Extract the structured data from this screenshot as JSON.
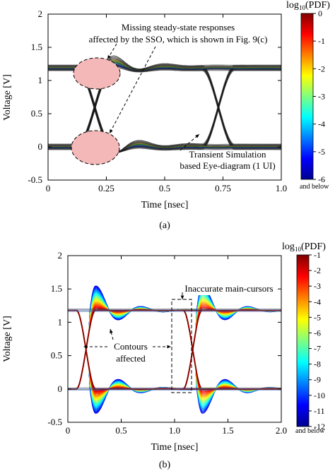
{
  "chart_data": [
    {
      "panel": "(a)",
      "type": "eye-diagram",
      "xlabel": "Time [nsec]",
      "ylabel": "Voltage [V]",
      "xlim": [
        0,
        1.0
      ],
      "ylim": [
        -0.5,
        2
      ],
      "x_ticks": [
        0,
        0.25,
        0.5,
        0.75,
        1.0
      ],
      "x_tick_labels": [
        "0",
        "0.25",
        "0.5",
        "0.75",
        "1.0"
      ],
      "y_ticks": [
        -0.5,
        0,
        0.5,
        1,
        1.5,
        2
      ],
      "y_tick_labels": [
        "-0.5",
        "0",
        "0.5",
        "1",
        "1.5",
        "2"
      ],
      "levels": {
        "high": 1.19,
        "low": 0.0
      },
      "eye_crossings": [
        0.2,
        0.73
      ],
      "colorbar": {
        "title_prefix": "log",
        "title_sub": "10",
        "title_suffix": "(PDF)",
        "min": -6,
        "max": 0,
        "ticks": [
          0,
          -1,
          -2,
          -3,
          -4,
          -5,
          -6
        ],
        "tick_labels": [
          "0",
          "-1",
          "-2",
          "-3",
          "-4",
          "-5",
          "-6"
        ],
        "bottom_note": "and below"
      },
      "annotations": [
        {
          "text_lines": [
            "Missing steady-state responses",
            "affected by the SSO, which is shown in Fig. 9(c)"
          ]
        },
        {
          "text_lines": [
            "Transient Simulation",
            "based Eye-diagram (1 UI)"
          ]
        }
      ],
      "caption": "(a)"
    },
    {
      "panel": "(b)",
      "type": "eye-diagram-contour",
      "xlabel": "Time [nsec]",
      "ylabel": "Voltage [V]",
      "xlim": [
        0,
        2.0
      ],
      "ylim": [
        -0.5,
        2
      ],
      "x_ticks": [
        0,
        0.5,
        1.0,
        1.5,
        2.0
      ],
      "x_tick_labels": [
        "0",
        "0.5",
        "1.0",
        "1.5",
        "2.0"
      ],
      "y_ticks": [
        -0.5,
        0,
        0.5,
        1,
        1.5,
        2
      ],
      "y_tick_labels": [
        "-0.5",
        "0",
        "0.5",
        "1",
        "1.5",
        "2"
      ],
      "levels": {
        "high": 1.18,
        "low": 0.0
      },
      "eye_crossings": [
        0.17,
        1.17
      ],
      "colorbar": {
        "title_prefix": "log",
        "title_sub": "10",
        "title_suffix": "(PDF)",
        "min": -12,
        "max": -1,
        "ticks": [
          -1,
          -2,
          -3,
          -4,
          -5,
          -6,
          -7,
          -8,
          -9,
          -10,
          -11,
          -12
        ],
        "tick_labels": [
          "-1",
          "-2",
          "-3",
          "-4",
          "-5",
          "-6",
          "-7",
          "-8",
          "-9",
          "-10",
          "-11",
          "-12"
        ],
        "bottom_note": "and below"
      },
      "annotations": [
        {
          "text_lines": [
            "Inaccurate main-cursors"
          ]
        },
        {
          "text_lines": [
            "Contours",
            "affected"
          ]
        }
      ],
      "caption": "(b)"
    }
  ]
}
